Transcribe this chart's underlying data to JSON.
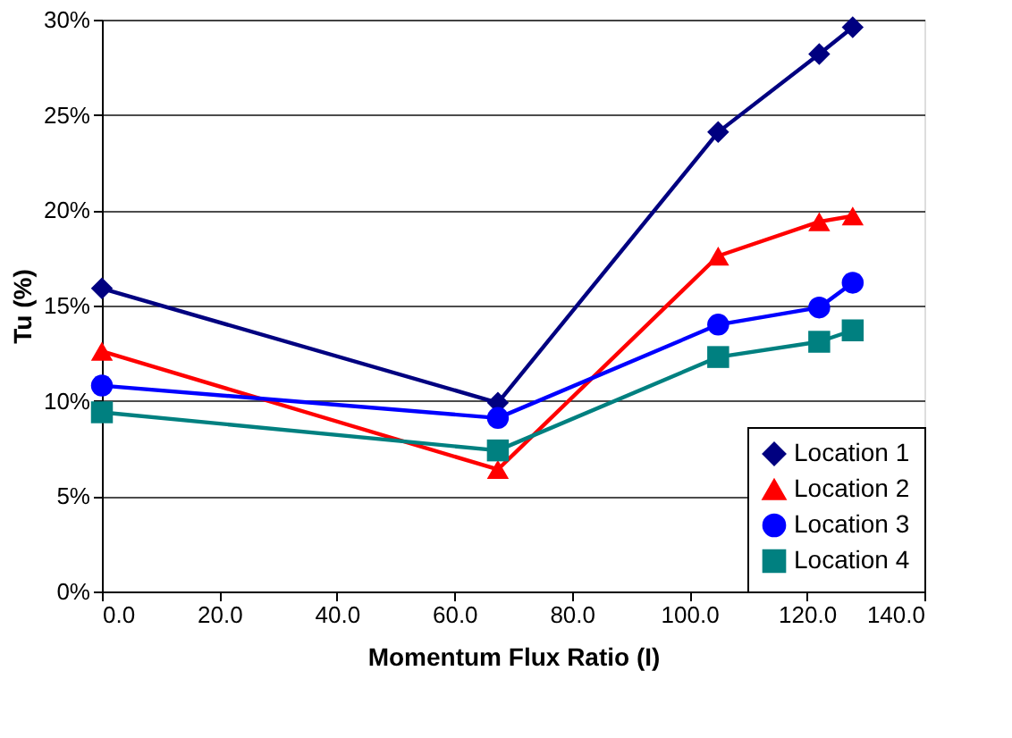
{
  "chart_data": {
    "type": "line",
    "xlabel": "Momentum Flux Ratio (I)",
    "ylabel": "Tu (%)",
    "x": [
      0,
      67.4,
      104.9,
      122.1,
      127.8
    ],
    "series": [
      {
        "name": "Location 1",
        "color": "#000080",
        "marker": "diamond",
        "values": [
          15.9,
          9.9,
          24.1,
          28.2,
          29.6
        ]
      },
      {
        "name": "Location 2",
        "color": "#ff0000",
        "marker": "triangle",
        "values": [
          12.6,
          6.4,
          17.6,
          19.4,
          19.7
        ]
      },
      {
        "name": "Location 3",
        "color": "#0000ff",
        "marker": "circle",
        "values": [
          10.8,
          9.1,
          14.0,
          14.9,
          16.2
        ]
      },
      {
        "name": "Location 4",
        "color": "#008080",
        "marker": "square",
        "values": [
          9.4,
          7.4,
          12.3,
          13.1,
          13.7
        ]
      }
    ],
    "xlim": [
      0,
      140
    ],
    "xticks": [
      {
        "value": 0,
        "label": "0.0"
      },
      {
        "value": 20,
        "label": "20.0"
      },
      {
        "value": 40,
        "label": "40.0"
      },
      {
        "value": 60,
        "label": "60.0"
      },
      {
        "value": 80,
        "label": "80.0"
      },
      {
        "value": 100,
        "label": "100.0"
      },
      {
        "value": 120,
        "label": "120.0"
      },
      {
        "value": 140,
        "label": "140.0"
      }
    ],
    "ylim": [
      0,
      30
    ],
    "yticks": [
      {
        "value": 0,
        "label": "0%"
      },
      {
        "value": 5,
        "label": "5%"
      },
      {
        "value": 10,
        "label": "10%"
      },
      {
        "value": 15,
        "label": "15%"
      },
      {
        "value": 20,
        "label": "20%"
      },
      {
        "value": 25,
        "label": "25%"
      },
      {
        "value": 30,
        "label": "30%"
      }
    ],
    "grid": "y",
    "legend": "bottom right",
    "line_style": "solid"
  }
}
